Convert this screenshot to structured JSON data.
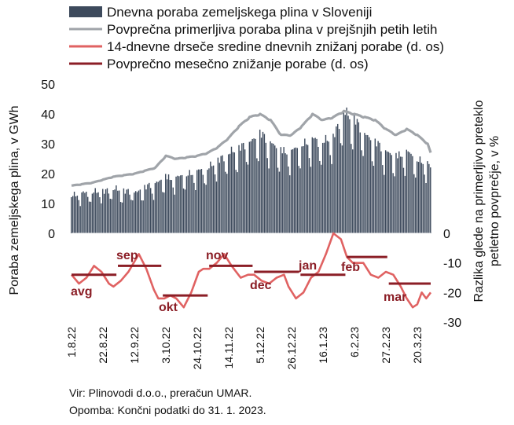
{
  "legend": [
    {
      "label": "Dnevna poraba zemeljskega plina v Sloveniji",
      "marker": "bar",
      "color": "#3d4a5c"
    },
    {
      "label": "Povprečna primerljiva poraba plina v prejšnjih petih letih",
      "marker": "line",
      "color": "#a0a4a9"
    },
    {
      "label": "14-dnevne drseče sredine dnevnih znižanj porabe (d. os)",
      "marker": "line",
      "color": "#e06262"
    },
    {
      "label": "Povprečno mesečno znižanje porabe (d. os)",
      "marker": "line",
      "color": "#8b1e26"
    }
  ],
  "source_line": "Vir: Plinovodi d.o.o., preračun UMAR.",
  "note_line": "Opomba: Končni podatki do 31. 1. 2023.",
  "chart_data": {
    "type": "bar",
    "x_ticks": [
      "1.8.22",
      "22.8.22",
      "12.9.22",
      "3.10.22",
      "24.10.22",
      "14.11.22",
      "5.12.22",
      "26.12.22",
      "16.1.23",
      "6.2.23",
      "27.2.23",
      "20.3.23"
    ],
    "start_date": "2022-08-01",
    "days": 241,
    "ylabel_left": "Poraba zemeljskega plina, v GWh",
    "ylabel_right": "Razlika glede na primerljivo preteklo petletno povprečje, v %",
    "ylim_left": [
      0,
      50
    ],
    "yticks_left": [
      0,
      10,
      20,
      30,
      40,
      50
    ],
    "ylim_right": [
      -30,
      0
    ],
    "yticks_right": [
      0,
      -10,
      -20,
      -30
    ],
    "series": [
      {
        "name": "Povprečna primerljiva poraba plina v prejšnjih petih letih",
        "type": "line",
        "axis": "left",
        "x_days": [
          0,
          14,
          28,
          42,
          56,
          63,
          70,
          84,
          91,
          98,
          105,
          112,
          119,
          126,
          133,
          140,
          147,
          154,
          161,
          168,
          175,
          182,
          189,
          196,
          203,
          210,
          217,
          224,
          231,
          238,
          240
        ],
        "values": [
          16,
          17,
          19,
          20,
          22,
          26,
          25,
          26,
          27,
          29,
          32,
          36,
          39,
          40,
          38,
          33,
          33,
          36,
          40,
          38,
          39,
          41,
          40,
          39,
          38,
          35,
          33,
          35,
          33,
          30,
          27
        ]
      },
      {
        "name": "Dnevna poraba zemeljskega plina v Sloveniji",
        "type": "bar",
        "axis": "left",
        "x_days": [
          0,
          14,
          28,
          42,
          56,
          63,
          70,
          84,
          91,
          98,
          105,
          112,
          119,
          126,
          133,
          140,
          147,
          154,
          161,
          168,
          175,
          182,
          189,
          196,
          203,
          210,
          217,
          224,
          231,
          238,
          240
        ],
        "values": [
          13,
          14,
          15,
          14,
          17,
          19,
          19,
          21,
          22,
          25,
          27,
          29,
          31,
          34,
          31,
          28,
          28,
          30,
          32,
          31,
          33,
          41,
          39,
          34,
          31,
          28,
          26,
          28,
          25,
          24,
          22
        ]
      },
      {
        "name": "14-dnevne drseče sredine dnevnih znižanj porabe (d. os)",
        "type": "line",
        "axis": "right",
        "x_days": [
          0,
          5,
          10,
          15,
          20,
          25,
          28,
          33,
          38,
          45,
          50,
          55,
          58,
          62,
          66,
          70,
          75,
          80,
          85,
          88,
          92,
          97,
          102,
          107,
          113,
          118,
          122,
          127,
          132,
          137,
          142,
          145,
          150,
          155,
          160,
          165,
          170,
          175,
          180,
          184,
          188,
          192,
          195,
          200,
          205,
          210,
          215,
          220,
          224,
          228,
          231,
          234,
          237,
          240
        ],
        "values": [
          -14,
          -17,
          -15,
          -11,
          -13,
          -17,
          -18,
          -16,
          -13,
          -7,
          -12,
          -19,
          -22,
          -22,
          -21,
          -22,
          -25,
          -20,
          -13,
          -12,
          -12,
          -10,
          -7,
          -11,
          -15,
          -14,
          -14,
          -16,
          -17,
          -15,
          -14,
          -18,
          -22,
          -20,
          -15,
          -13,
          -7,
          0,
          -2,
          -8,
          -10,
          -10,
          -10,
          -14,
          -15,
          -13,
          -14,
          -18,
          -22,
          -25,
          -24,
          -20,
          -22,
          -20
        ]
      },
      {
        "name": "Povprečno mesečno znižanje porabe (d. os)",
        "type": "step",
        "axis": "right",
        "segments": [
          {
            "label": "avg",
            "from_day": 0,
            "to_day": 30,
            "value": -14
          },
          {
            "label": "sep",
            "from_day": 31,
            "to_day": 60,
            "value": -11
          },
          {
            "label": "okt",
            "from_day": 61,
            "to_day": 91,
            "value": -21
          },
          {
            "label": "nov",
            "from_day": 92,
            "to_day": 121,
            "value": -11
          },
          {
            "label": "dec",
            "from_day": 122,
            "to_day": 152,
            "value": -13
          },
          {
            "label": "jan",
            "from_day": 153,
            "to_day": 183,
            "value": -14
          },
          {
            "label": "feb",
            "from_day": 184,
            "to_day": 211,
            "value": -8
          },
          {
            "label": "mar",
            "from_day": 212,
            "to_day": 242,
            "value": -17
          }
        ]
      }
    ]
  }
}
